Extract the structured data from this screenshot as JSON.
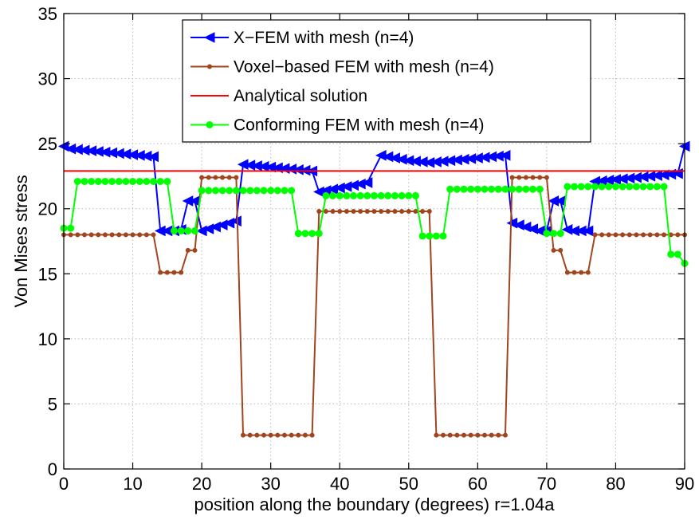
{
  "chart_data": {
    "type": "line",
    "title": "",
    "xlabel": "position along the boundary (degrees) r=1.04a",
    "ylabel": "Von Mises stress",
    "xlim": [
      0,
      90
    ],
    "ylim": [
      0,
      35
    ],
    "xticks": [
      0,
      10,
      20,
      30,
      40,
      50,
      60,
      70,
      80,
      90
    ],
    "yticks": [
      0,
      5,
      10,
      15,
      20,
      25,
      30,
      35
    ],
    "grid": true,
    "legend_position": "top-center",
    "series": [
      {
        "name": "X−FEM with mesh (n=4)",
        "color": "#0000ff",
        "marker": "triangle-left",
        "points": [
          [
            0,
            24.8
          ],
          [
            1,
            24.6
          ],
          [
            2,
            24.55
          ],
          [
            3,
            24.5
          ],
          [
            4,
            24.45
          ],
          [
            5,
            24.4
          ],
          [
            6,
            24.35
          ],
          [
            7,
            24.3
          ],
          [
            8,
            24.25
          ],
          [
            9,
            24.2
          ],
          [
            10,
            24.15
          ],
          [
            11,
            24.1
          ],
          [
            12,
            24.05
          ],
          [
            13,
            24.0
          ],
          [
            14,
            18.3
          ],
          [
            15,
            18.3
          ],
          [
            16,
            18.3
          ],
          [
            17,
            18.4
          ],
          [
            18,
            20.6
          ],
          [
            19,
            20.6
          ],
          [
            20,
            18.3
          ],
          [
            21,
            18.45
          ],
          [
            22,
            18.6
          ],
          [
            23,
            18.75
          ],
          [
            24,
            18.9
          ],
          [
            25,
            19.05
          ],
          [
            26,
            23.4
          ],
          [
            27,
            23.35
          ],
          [
            28,
            23.3
          ],
          [
            29,
            23.25
          ],
          [
            30,
            23.2
          ],
          [
            31,
            23.15
          ],
          [
            32,
            23.1
          ],
          [
            33,
            23.05
          ],
          [
            34,
            23.0
          ],
          [
            35,
            22.95
          ],
          [
            36,
            22.9
          ],
          [
            37,
            21.3
          ],
          [
            38,
            21.4
          ],
          [
            39,
            21.5
          ],
          [
            40,
            21.6
          ],
          [
            41,
            21.7
          ],
          [
            42,
            21.8
          ],
          [
            43,
            21.9
          ],
          [
            44,
            22.0
          ],
          [
            46,
            24.1
          ],
          [
            47,
            24.0
          ],
          [
            48,
            23.9
          ],
          [
            49,
            23.8
          ],
          [
            50,
            23.7
          ],
          [
            51,
            23.65
          ],
          [
            52,
            23.6
          ],
          [
            53,
            23.55
          ],
          [
            54,
            23.6
          ],
          [
            55,
            23.65
          ],
          [
            56,
            23.7
          ],
          [
            57,
            23.75
          ],
          [
            58,
            23.8
          ],
          [
            59,
            23.85
          ],
          [
            60,
            23.9
          ],
          [
            61,
            23.95
          ],
          [
            62,
            24.0
          ],
          [
            63,
            24.05
          ],
          [
            64,
            24.1
          ],
          [
            65,
            18.9
          ],
          [
            66,
            18.75
          ],
          [
            67,
            18.6
          ],
          [
            68,
            18.45
          ],
          [
            69,
            18.3
          ],
          [
            70,
            18.3
          ],
          [
            71,
            20.6
          ],
          [
            72,
            20.6
          ],
          [
            73,
            18.4
          ],
          [
            74,
            18.3
          ],
          [
            75,
            18.3
          ],
          [
            76,
            18.3
          ],
          [
            77,
            22.1
          ],
          [
            78,
            22.15
          ],
          [
            79,
            22.2
          ],
          [
            80,
            22.25
          ],
          [
            81,
            22.3
          ],
          [
            82,
            22.35
          ],
          [
            83,
            22.4
          ],
          [
            84,
            22.45
          ],
          [
            85,
            22.5
          ],
          [
            86,
            22.55
          ],
          [
            87,
            22.6
          ],
          [
            88,
            22.65
          ],
          [
            89,
            22.7
          ],
          [
            90,
            24.8
          ]
        ]
      },
      {
        "name": "Voxel−based FEM with mesh (n=4)",
        "color": "#a0451e",
        "marker": "dot",
        "points": [
          [
            0,
            18
          ],
          [
            1,
            18
          ],
          [
            2,
            18
          ],
          [
            3,
            18
          ],
          [
            4,
            18
          ],
          [
            5,
            18
          ],
          [
            6,
            18
          ],
          [
            7,
            18
          ],
          [
            8,
            18
          ],
          [
            9,
            18
          ],
          [
            10,
            18
          ],
          [
            11,
            18
          ],
          [
            12,
            18
          ],
          [
            13,
            18
          ],
          [
            14,
            15.1
          ],
          [
            15,
            15.1
          ],
          [
            16,
            15.1
          ],
          [
            17,
            15.1
          ],
          [
            18,
            16.8
          ],
          [
            19,
            16.8
          ],
          [
            20,
            22.4
          ],
          [
            21,
            22.4
          ],
          [
            22,
            22.4
          ],
          [
            23,
            22.4
          ],
          [
            24,
            22.4
          ],
          [
            25,
            22.4
          ],
          [
            26,
            2.6
          ],
          [
            27,
            2.6
          ],
          [
            28,
            2.6
          ],
          [
            29,
            2.6
          ],
          [
            30,
            2.6
          ],
          [
            31,
            2.6
          ],
          [
            32,
            2.6
          ],
          [
            33,
            2.6
          ],
          [
            34,
            2.6
          ],
          [
            35,
            2.6
          ],
          [
            36,
            2.6
          ],
          [
            37,
            19.8
          ],
          [
            38,
            19.8
          ],
          [
            39,
            19.8
          ],
          [
            40,
            19.8
          ],
          [
            41,
            19.8
          ],
          [
            42,
            19.8
          ],
          [
            43,
            19.8
          ],
          [
            44,
            19.8
          ],
          [
            45,
            19.8
          ],
          [
            46,
            19.8
          ],
          [
            47,
            19.8
          ],
          [
            48,
            19.8
          ],
          [
            49,
            19.8
          ],
          [
            50,
            19.8
          ],
          [
            51,
            19.8
          ],
          [
            52,
            19.8
          ],
          [
            53,
            19.8
          ],
          [
            54,
            2.6
          ],
          [
            55,
            2.6
          ],
          [
            56,
            2.6
          ],
          [
            57,
            2.6
          ],
          [
            58,
            2.6
          ],
          [
            59,
            2.6
          ],
          [
            60,
            2.6
          ],
          [
            61,
            2.6
          ],
          [
            62,
            2.6
          ],
          [
            63,
            2.6
          ],
          [
            64,
            2.6
          ],
          [
            65,
            22.4
          ],
          [
            66,
            22.4
          ],
          [
            67,
            22.4
          ],
          [
            68,
            22.4
          ],
          [
            69,
            22.4
          ],
          [
            70,
            22.4
          ],
          [
            71,
            16.8
          ],
          [
            72,
            16.8
          ],
          [
            73,
            15.1
          ],
          [
            74,
            15.1
          ],
          [
            75,
            15.1
          ],
          [
            76,
            15.1
          ],
          [
            77,
            18
          ],
          [
            78,
            18
          ],
          [
            79,
            18
          ],
          [
            80,
            18
          ],
          [
            81,
            18
          ],
          [
            82,
            18
          ],
          [
            83,
            18
          ],
          [
            84,
            18
          ],
          [
            85,
            18
          ],
          [
            86,
            18
          ],
          [
            87,
            18
          ],
          [
            88,
            18
          ],
          [
            89,
            18
          ],
          [
            90,
            18
          ]
        ]
      },
      {
        "name": "Analytical solution",
        "color": "#ff0000",
        "marker": "none",
        "points": [
          [
            0,
            22.9
          ],
          [
            90,
            22.9
          ]
        ]
      },
      {
        "name": "Conforming FEM with mesh (n=4)",
        "color": "#00ff00",
        "marker": "circle",
        "points": [
          [
            0,
            18.5
          ],
          [
            1,
            18.5
          ],
          [
            2,
            22.1
          ],
          [
            3,
            22.1
          ],
          [
            4,
            22.1
          ],
          [
            5,
            22.1
          ],
          [
            6,
            22.1
          ],
          [
            7,
            22.1
          ],
          [
            8,
            22.1
          ],
          [
            9,
            22.1
          ],
          [
            10,
            22.1
          ],
          [
            11,
            22.1
          ],
          [
            12,
            22.1
          ],
          [
            13,
            22.1
          ],
          [
            14,
            22.1
          ],
          [
            15,
            22.1
          ],
          [
            16,
            18.3
          ],
          [
            17,
            18.3
          ],
          [
            18,
            18.3
          ],
          [
            19,
            18.3
          ],
          [
            20,
            21.4
          ],
          [
            21,
            21.4
          ],
          [
            22,
            21.4
          ],
          [
            23,
            21.4
          ],
          [
            24,
            21.4
          ],
          [
            25,
            21.4
          ],
          [
            26,
            21.4
          ],
          [
            27,
            21.4
          ],
          [
            28,
            21.4
          ],
          [
            29,
            21.4
          ],
          [
            30,
            21.4
          ],
          [
            31,
            21.4
          ],
          [
            32,
            21.4
          ],
          [
            33,
            21.4
          ],
          [
            34,
            18.1
          ],
          [
            35,
            18.1
          ],
          [
            36,
            18.1
          ],
          [
            37,
            18.1
          ],
          [
            38,
            21.0
          ],
          [
            39,
            21.0
          ],
          [
            40,
            21.0
          ],
          [
            41,
            21.0
          ],
          [
            42,
            21.0
          ],
          [
            43,
            21.0
          ],
          [
            44,
            21.0
          ],
          [
            45,
            21.0
          ],
          [
            46,
            21.0
          ],
          [
            47,
            21.0
          ],
          [
            48,
            21.0
          ],
          [
            49,
            21.0
          ],
          [
            50,
            21.0
          ],
          [
            51,
            21.0
          ],
          [
            52,
            17.9
          ],
          [
            53,
            17.9
          ],
          [
            54,
            17.9
          ],
          [
            55,
            17.9
          ],
          [
            56,
            21.5
          ],
          [
            57,
            21.5
          ],
          [
            58,
            21.5
          ],
          [
            59,
            21.5
          ],
          [
            60,
            21.5
          ],
          [
            61,
            21.5
          ],
          [
            62,
            21.5
          ],
          [
            63,
            21.5
          ],
          [
            64,
            21.5
          ],
          [
            65,
            21.5
          ],
          [
            66,
            21.5
          ],
          [
            67,
            21.5
          ],
          [
            68,
            21.5
          ],
          [
            69,
            21.5
          ],
          [
            70,
            18.1
          ],
          [
            71,
            18.1
          ],
          [
            72,
            18.1
          ],
          [
            73,
            21.7
          ],
          [
            74,
            21.7
          ],
          [
            75,
            21.7
          ],
          [
            76,
            21.7
          ],
          [
            77,
            21.7
          ],
          [
            78,
            21.7
          ],
          [
            79,
            21.7
          ],
          [
            80,
            21.7
          ],
          [
            81,
            21.7
          ],
          [
            82,
            21.7
          ],
          [
            83,
            21.7
          ],
          [
            84,
            21.7
          ],
          [
            85,
            21.7
          ],
          [
            86,
            21.7
          ],
          [
            87,
            21.7
          ],
          [
            88,
            16.5
          ],
          [
            89,
            16.5
          ],
          [
            90,
            15.8
          ]
        ]
      }
    ]
  }
}
